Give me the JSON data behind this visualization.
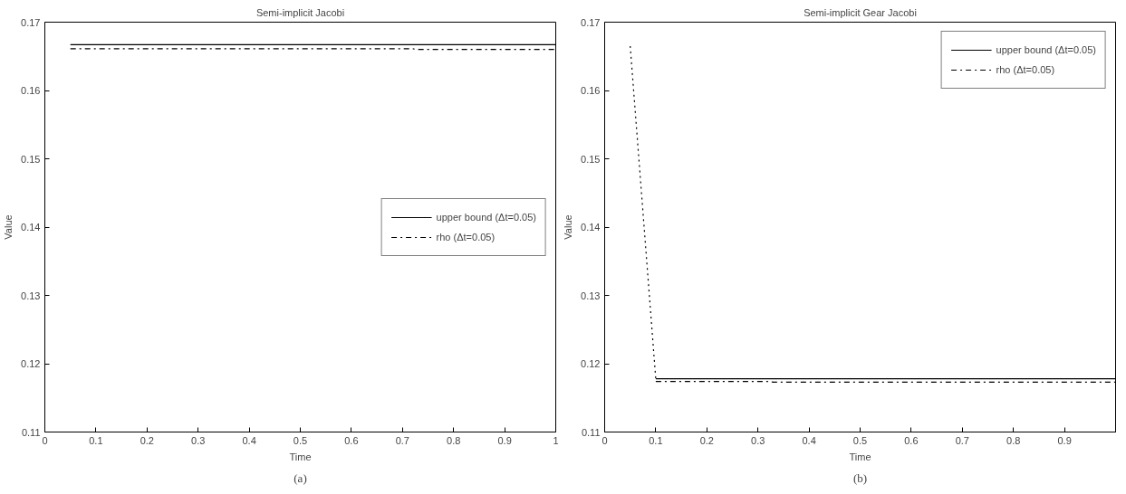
{
  "chart_data": [
    {
      "type": "line",
      "title": "Semi-implicit Jacobi",
      "xlabel": "Time",
      "ylabel": "Value",
      "annotations": [
        "(a)"
      ],
      "xlim": [
        0,
        1
      ],
      "ylim": [
        0.11,
        0.17
      ],
      "xticks": [
        0,
        0.1,
        0.2,
        0.3,
        0.4,
        0.5,
        0.6,
        0.7,
        0.8,
        0.9,
        1
      ],
      "yticks": [
        0.11,
        0.12,
        0.13,
        0.14,
        0.15,
        0.16,
        0.17
      ],
      "grid": false,
      "legend": "right",
      "series": [
        {
          "name": "upper bound (Δt=0.05)",
          "color": "#000000",
          "line_style": "solid",
          "x": [
            0.05,
            1
          ],
          "values": [
            0.1667,
            0.1667
          ]
        },
        {
          "name": "rho (Δt=0.05)",
          "color": "#000000",
          "line_style": "dashdot",
          "x": [
            0.05,
            0.72,
            0.73,
            1
          ],
          "values": [
            0.1661,
            0.1661,
            0.166,
            0.166
          ]
        }
      ]
    },
    {
      "type": "line",
      "title": "Semi-implicit Gear Jacobi",
      "xlabel": "Time",
      "ylabel": "Value",
      "annotations": [
        "(b)"
      ],
      "xlim": [
        0,
        1
      ],
      "ylim": [
        0.11,
        0.17
      ],
      "xticks": [
        0,
        0.1,
        0.2,
        0.3,
        0.4,
        0.5,
        0.6,
        0.7,
        0.8,
        0.9,
        {
          "value": 1,
          "label": null
        }
      ],
      "yticks": [
        0.11,
        0.12,
        0.13,
        0.14,
        0.15,
        0.16,
        0.17
      ],
      "grid": false,
      "legend": "top right",
      "series": [
        {
          "color": "#000000",
          "line_style": "dotted",
          "x": [
            0.05,
            0.1
          ],
          "values": [
            0.1665,
            0.1178
          ]
        },
        {
          "name": "upper bound (Δt=0.05)",
          "color": "#000000",
          "line_style": "solid",
          "x": [
            0.1,
            1
          ],
          "values": [
            0.1178,
            0.1178
          ]
        },
        {
          "name": "rho (Δt=0.05)",
          "color": "#000000",
          "line_style": "dashdot",
          "x": [
            0.1,
            0.32,
            0.33,
            1
          ],
          "values": [
            0.1174,
            0.1174,
            0.1173,
            0.1173
          ]
        }
      ]
    }
  ]
}
